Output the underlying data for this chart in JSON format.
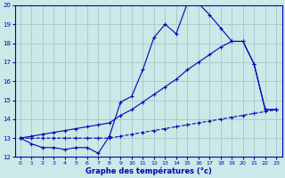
{
  "title": "Graphe des températures (°c)",
  "bg_color": "#cce8e8",
  "grid_color": "#aacccc",
  "line_color": "#0000bb",
  "xlim": [
    -0.5,
    23.5
  ],
  "ylim": [
    12,
    20
  ],
  "xticks": [
    0,
    1,
    2,
    3,
    4,
    5,
    6,
    7,
    8,
    9,
    10,
    11,
    12,
    13,
    14,
    15,
    16,
    17,
    18,
    19,
    20,
    21,
    22,
    23
  ],
  "yticks": [
    12,
    13,
    14,
    15,
    16,
    17,
    18,
    19,
    20
  ],
  "hours_actual": [
    0,
    1,
    2,
    3,
    4,
    5,
    6,
    7,
    8,
    9,
    10,
    11,
    12,
    13,
    14,
    15,
    16,
    17,
    18,
    19,
    20,
    21,
    22,
    23
  ],
  "temp_actual": [
    13.0,
    12.7,
    12.5,
    12.5,
    12.4,
    12.5,
    12.5,
    12.2,
    13.1,
    14.9,
    15.2,
    16.6,
    18.3,
    19.0,
    18.5,
    20.1,
    20.1,
    19.5,
    18.8,
    18.1,
    18.1,
    16.9,
    14.5,
    14.5
  ],
  "hours_max": [
    0,
    1,
    2,
    3,
    4,
    5,
    6,
    7,
    8,
    9,
    10,
    11,
    12,
    13,
    14,
    15,
    16,
    17,
    18,
    19,
    20,
    21,
    22,
    23
  ],
  "temp_max": [
    13.0,
    13.1,
    13.2,
    13.3,
    13.4,
    13.5,
    13.6,
    13.7,
    13.8,
    14.2,
    14.5,
    14.9,
    15.3,
    15.7,
    16.1,
    16.6,
    17.0,
    17.4,
    17.8,
    18.1,
    18.1,
    16.9,
    14.5,
    14.5
  ],
  "hours_min": [
    0,
    1,
    2,
    3,
    4,
    5,
    6,
    7,
    8,
    9,
    10,
    11,
    12,
    13,
    14,
    15,
    16,
    17,
    18,
    19,
    20,
    21,
    22,
    23
  ],
  "temp_min": [
    13.0,
    13.0,
    13.0,
    13.0,
    13.0,
    13.0,
    13.0,
    13.0,
    13.0,
    13.1,
    13.2,
    13.3,
    13.4,
    13.5,
    13.6,
    13.7,
    13.8,
    13.9,
    14.0,
    14.1,
    14.2,
    14.3,
    14.4,
    14.5
  ]
}
